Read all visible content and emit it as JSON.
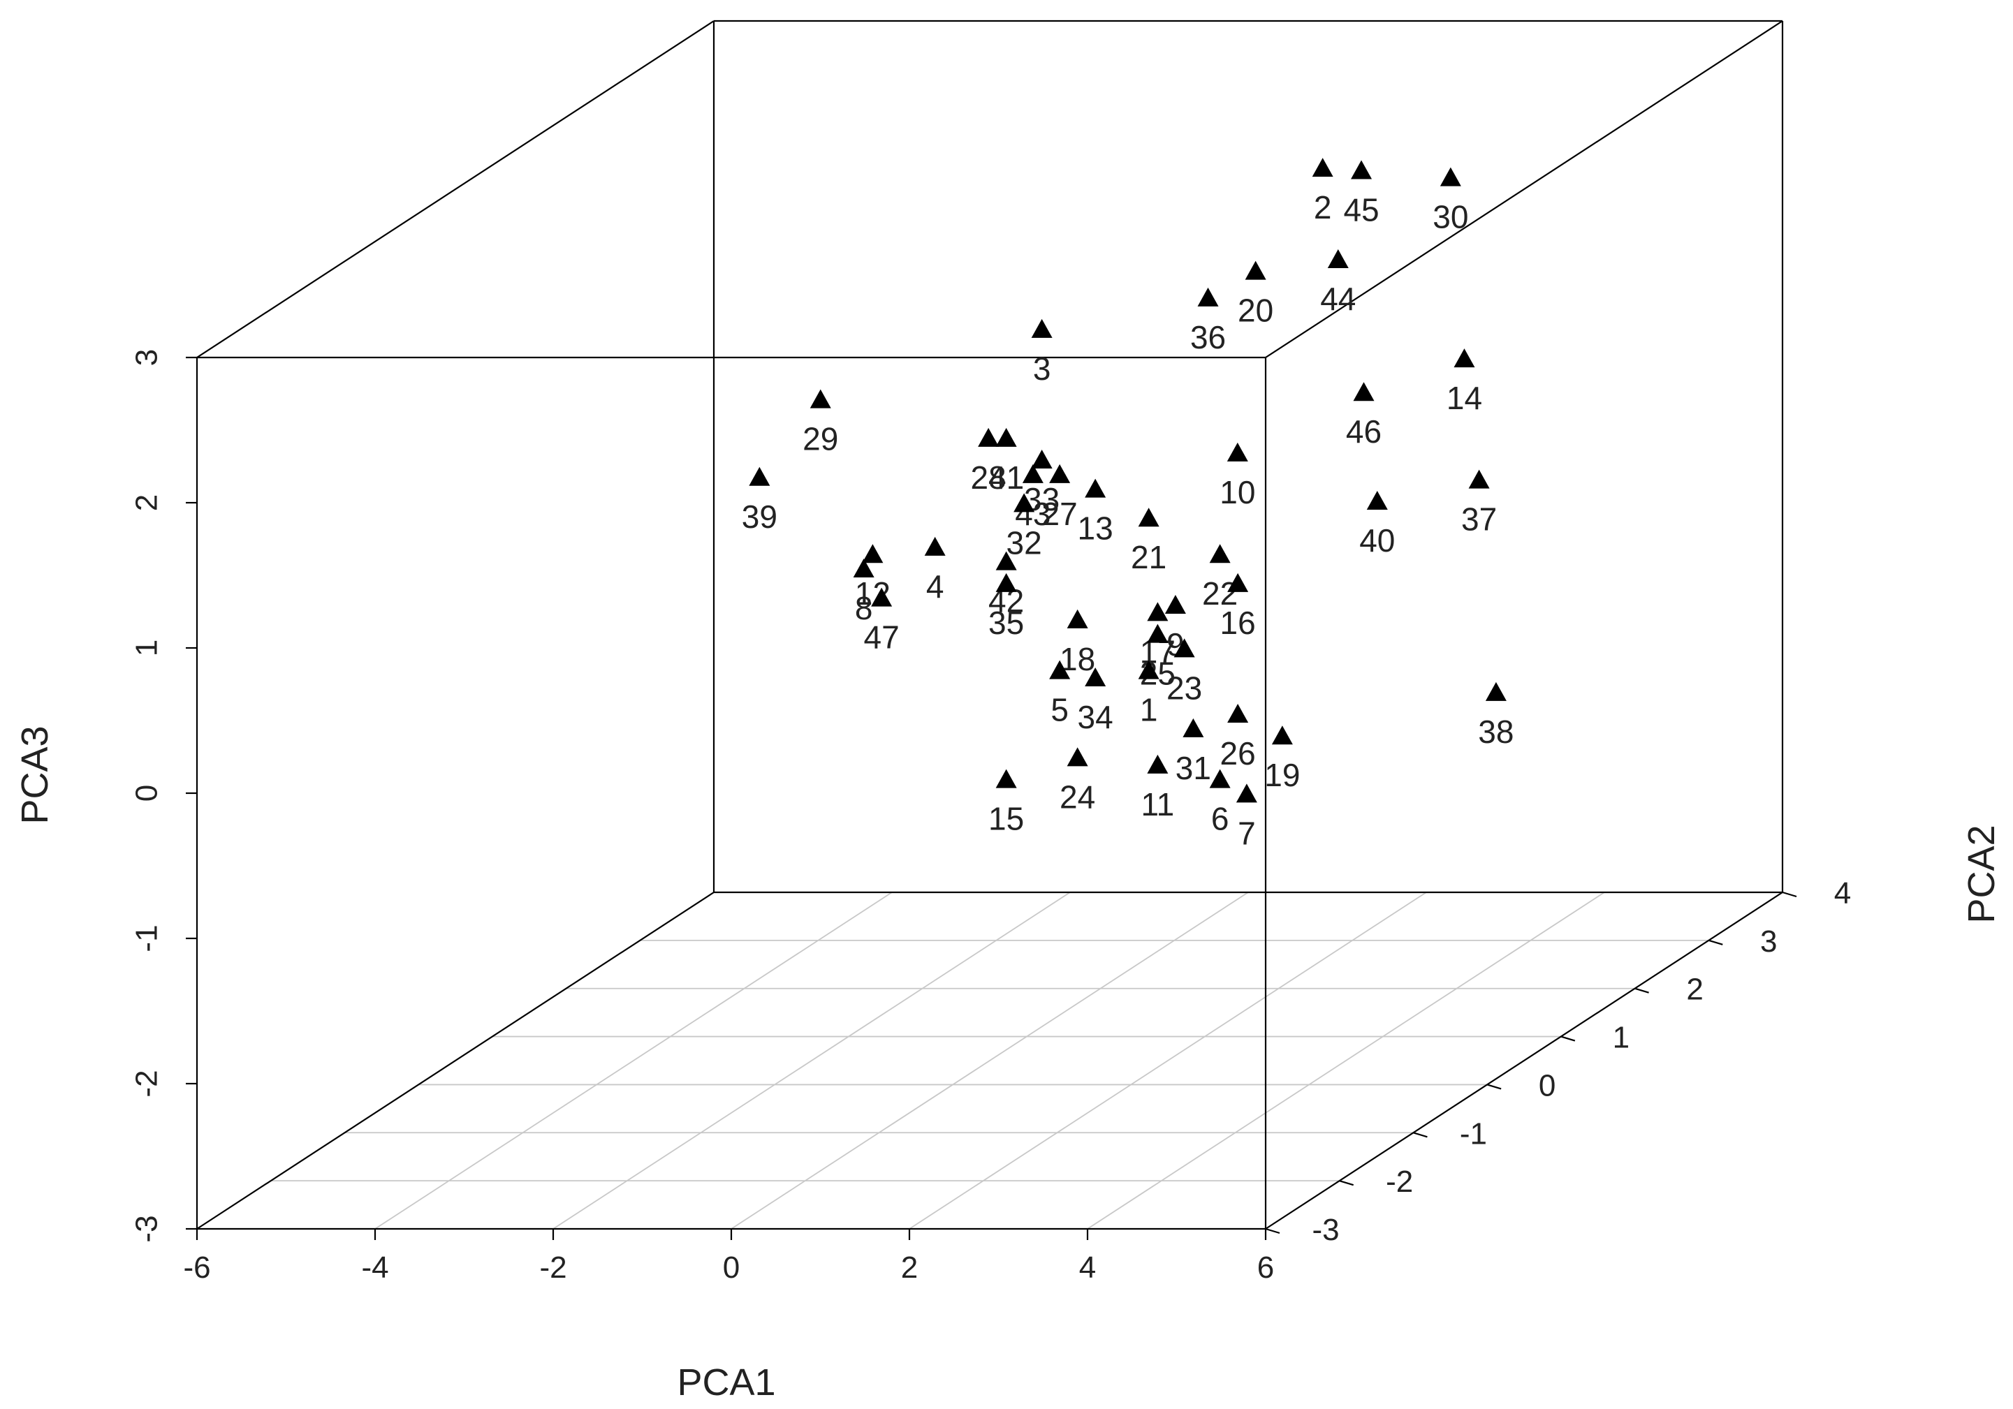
{
  "chart_data": {
    "type": "scatter",
    "title": "",
    "xlabel": "PCA1",
    "ylabel": "PCA2",
    "zlabel": "PCA3",
    "xlim": [
      -6,
      6
    ],
    "ylim": [
      -3,
      4
    ],
    "zlim": [
      -3,
      3
    ],
    "x_ticks": [
      -6,
      -4,
      -2,
      0,
      2,
      4,
      6
    ],
    "y_ticks": [
      -3,
      -2,
      -1,
      0,
      1,
      2,
      3,
      4
    ],
    "z_ticks": [
      -3,
      -2,
      -1,
      0,
      1,
      2,
      3
    ],
    "x_tick_labels": [
      "-6",
      "-4",
      "-2",
      "0",
      "2",
      "4",
      "6"
    ],
    "y_tick_labels": [
      "-3",
      "-2",
      "-1",
      "0",
      "1",
      "2",
      "3",
      "4"
    ],
    "z_tick_labels": [
      "-3",
      "-2",
      "-1",
      "0",
      "1",
      "2",
      "3"
    ],
    "grid": "floor",
    "marker": "filled-triangle",
    "points": [
      {
        "label": "2",
        "x": 1.5,
        "y": 3.2,
        "z": 2.25
      },
      {
        "label": "45",
        "x": 2.1,
        "y": 3.0,
        "z": 2.3
      },
      {
        "label": "30",
        "x": 3.6,
        "y": 2.4,
        "z": 2.45
      },
      {
        "label": "44",
        "x": 3.0,
        "y": 1.6,
        "z": 2.15
      },
      {
        "label": "20",
        "x": 3.4,
        "y": 0.0,
        "z": 2.6
      },
      {
        "label": "36",
        "x": 2.7,
        "y": 0.2,
        "z": 2.35
      },
      {
        "label": "14",
        "x": 4.5,
        "y": 1.5,
        "z": 1.5
      },
      {
        "label": "46",
        "x": 4.2,
        "y": 0.5,
        "z": 1.6
      },
      {
        "label": "3",
        "x": 1.0,
        "y": 0.0,
        "z": 2.2
      },
      {
        "label": "29",
        "x": -1.9,
        "y": 0.5,
        "z": 1.55
      },
      {
        "label": "39",
        "x": -3.0,
        "y": 1.0,
        "z": 0.85
      },
      {
        "label": "10",
        "x": 2.7,
        "y": 0.6,
        "z": 1.15
      },
      {
        "label": "37",
        "x": 4.5,
        "y": 1.7,
        "z": 0.6
      },
      {
        "label": "40",
        "x": 4.6,
        "y": 0.2,
        "z": 0.95
      },
      {
        "label": "28",
        "x": 0.4,
        "y": 0.0,
        "z": 1.45
      },
      {
        "label": "41",
        "x": 0.6,
        "y": 0.0,
        "z": 1.45
      },
      {
        "label": "43",
        "x": 0.9,
        "y": 0.0,
        "z": 1.2
      },
      {
        "label": "33",
        "x": 1.0,
        "y": 0.0,
        "z": 1.3
      },
      {
        "label": "27",
        "x": 1.2,
        "y": 0.0,
        "z": 1.2
      },
      {
        "label": "32",
        "x": 0.8,
        "y": 0.0,
        "z": 1.0
      },
      {
        "label": "13",
        "x": 1.6,
        "y": 0.0,
        "z": 1.1
      },
      {
        "label": "21",
        "x": 2.2,
        "y": 0.0,
        "z": 0.9
      },
      {
        "label": "22",
        "x": 3.0,
        "y": 0.0,
        "z": 0.65
      },
      {
        "label": "16",
        "x": 3.2,
        "y": 0.0,
        "z": 0.45
      },
      {
        "label": "17",
        "x": 2.3,
        "y": 0.0,
        "z": 0.25
      },
      {
        "label": "9",
        "x": 2.5,
        "y": 0.0,
        "z": 0.3
      },
      {
        "label": "25",
        "x": 2.3,
        "y": 0.0,
        "z": 0.1
      },
      {
        "label": "23",
        "x": 2.6,
        "y": 0.0,
        "z": 0.0
      },
      {
        "label": "1",
        "x": 2.2,
        "y": 0.0,
        "z": -0.15
      },
      {
        "label": "4",
        "x": -0.2,
        "y": 0.0,
        "z": 0.7
      },
      {
        "label": "12",
        "x": -0.9,
        "y": 0.0,
        "z": 0.65
      },
      {
        "label": "8",
        "x": -1.0,
        "y": 0.0,
        "z": 0.55
      },
      {
        "label": "47",
        "x": -0.8,
        "y": 0.0,
        "z": 0.35
      },
      {
        "label": "42",
        "x": 0.6,
        "y": 0.0,
        "z": 0.6
      },
      {
        "label": "35",
        "x": 0.6,
        "y": 0.0,
        "z": 0.45
      },
      {
        "label": "18",
        "x": 1.4,
        "y": 0.0,
        "z": 0.2
      },
      {
        "label": "5",
        "x": 1.2,
        "y": 0.0,
        "z": -0.15
      },
      {
        "label": "34",
        "x": 1.6,
        "y": 0.0,
        "z": -0.2
      },
      {
        "label": "31",
        "x": 2.7,
        "y": 0.0,
        "z": -0.55
      },
      {
        "label": "26",
        "x": 3.2,
        "y": 0.0,
        "z": -0.45
      },
      {
        "label": "19",
        "x": 3.7,
        "y": 0.0,
        "z": -0.6
      },
      {
        "label": "11",
        "x": 2.3,
        "y": 0.0,
        "z": -0.8
      },
      {
        "label": "6",
        "x": 3.0,
        "y": 0.0,
        "z": -0.9
      },
      {
        "label": "7",
        "x": 3.3,
        "y": 0.0,
        "z": -1.0
      },
      {
        "label": "24",
        "x": 1.4,
        "y": 0.0,
        "z": -0.75
      },
      {
        "label": "15",
        "x": 0.6,
        "y": 0.0,
        "z": -0.9
      },
      {
        "label": "38",
        "x": 6.1,
        "y": 0.0,
        "z": -0.3
      }
    ]
  }
}
